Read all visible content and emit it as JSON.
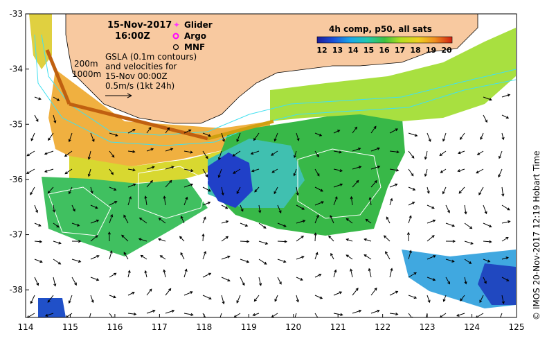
{
  "map": {
    "lon_range": [
      114,
      125
    ],
    "lat_range": [
      -38.5,
      -33
    ],
    "lon_ticks": [
      "114",
      "115",
      "116",
      "117",
      "118",
      "119",
      "120",
      "121",
      "122",
      "123",
      "124",
      "125"
    ],
    "lat_ticks": [
      "-33",
      "-34",
      "-35",
      "-36",
      "-37",
      "-38"
    ]
  },
  "header": {
    "date": "15-Nov-2017",
    "time": "16:00Z"
  },
  "legend": {
    "glider": "Glider",
    "argo": "Argo",
    "mnf": "MNF",
    "glider_color": "#ff33ff",
    "argo_color": "#ff00ff",
    "mnf_color": "#000000"
  },
  "depth_labels": {
    "d200": "200m",
    "d1000": "1000m"
  },
  "gsla_note": {
    "line1": "GSLA (0.1m contours)",
    "line2": "and velocities for",
    "line3": "15-Nov 00:00Z",
    "line4": "0.5m/s (1kt 24h)"
  },
  "colorbar": {
    "title": "4h comp, p50, all sats",
    "labels": [
      "12",
      "13",
      "14",
      "15",
      "16",
      "17",
      "18",
      "19",
      "20"
    ],
    "min": 12,
    "max": 20
  },
  "credit": "© IMOS 20-Nov-2017 12:19 Hobart Time",
  "colors": {
    "land": "#f8c9a0",
    "contour_iso": "#40e0f0",
    "contour_gsla": "#ffffff"
  }
}
